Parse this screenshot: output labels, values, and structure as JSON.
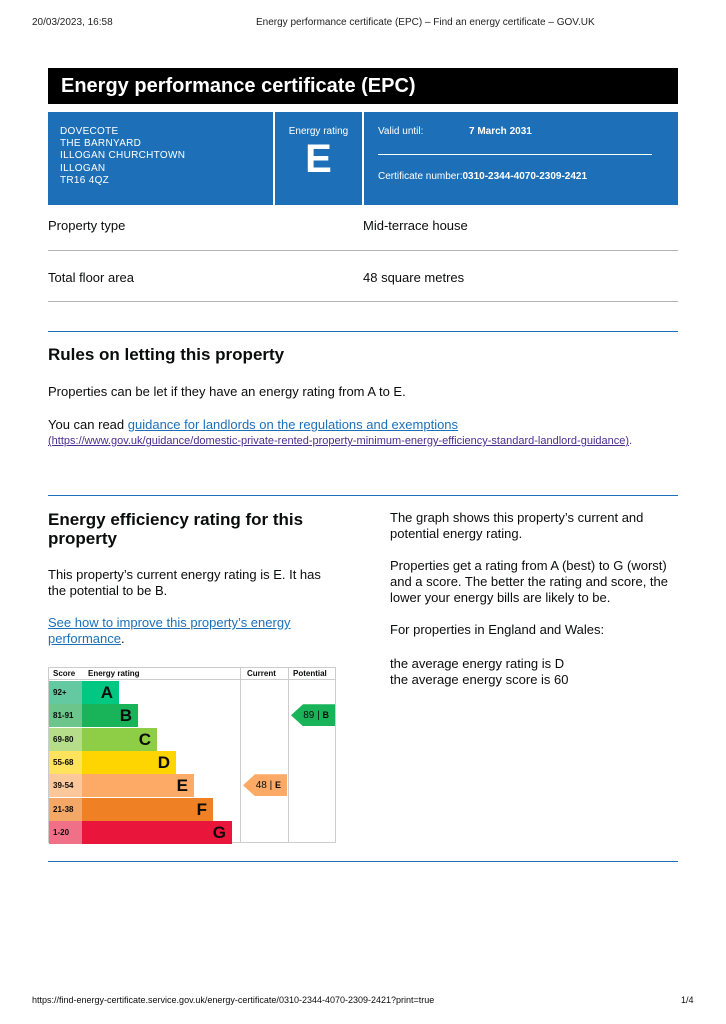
{
  "print_header": {
    "datetime": "20/03/2023, 16:58",
    "page_title": "Energy performance certificate (EPC) – Find an energy certificate – GOV.UK"
  },
  "title": "Energy performance certificate (EPC)",
  "address": [
    "DOVECOTE",
    "THE BARNYARD",
    "ILLOGAN CHURCHTOWN",
    "ILLOGAN",
    "TR16 4QZ"
  ],
  "energy_rating": {
    "label": "Energy rating",
    "value": "E"
  },
  "valid_until": {
    "label": "Valid until:",
    "value": "7 March 2031"
  },
  "certificate_number": {
    "label": "Certificate number:",
    "value": "0310-2344-4070-2309-2421"
  },
  "details": [
    {
      "label": "Property type",
      "value": "Mid-terrace house"
    },
    {
      "label": "Total floor area",
      "value": "48 square metres"
    }
  ],
  "rules": {
    "heading": "Rules on letting this property",
    "p1": "Properties can be let if they have an energy rating from A to E.",
    "p2_prefix": "You can read ",
    "link": "guidance for landlords on the regulations and exemptions",
    "url": "(https://www.gov.uk/guidance/domestic-private-rented-property-minimum-energy-efficiency-standard-landlord-guidance)",
    "suffix": "."
  },
  "efficiency": {
    "heading": "Energy efficiency rating for this property",
    "p1": "This property’s current energy rating is E. It has the potential to be B.",
    "link": "See how to improve this property’s energy performance",
    "suffix": ".",
    "right": [
      "The graph shows this property’s current and potential energy rating.",
      "Properties get a rating from A (best) to G (worst) and a score. The better the rating and score, the lower your energy bills are likely to be.",
      "For properties in England and Wales:"
    ],
    "avg_rating": "the average energy rating is D",
    "avg_score": "the average energy score is 60"
  },
  "rating_chart": {
    "headers": {
      "score": "Score",
      "rating": "Energy rating",
      "current": "Current",
      "potential": "Potential"
    },
    "bands": [
      {
        "score": "92+",
        "letter": "A",
        "color": "#00c781",
        "light": "#64c8a0"
      },
      {
        "score": "81-91",
        "letter": "B",
        "color": "#19b459",
        "light": "#6cc58a"
      },
      {
        "score": "69-80",
        "letter": "C",
        "color": "#8dce46",
        "light": "#b5dd8a"
      },
      {
        "score": "55-68",
        "letter": "D",
        "color": "#ffd500",
        "light": "#ffe35c"
      },
      {
        "score": "39-54",
        "letter": "E",
        "color": "#fcaa65",
        "light": "#fdc79c"
      },
      {
        "score": "21-38",
        "letter": "F",
        "color": "#ef8023",
        "light": "#f3a868"
      },
      {
        "score": "1-20",
        "letter": "G",
        "color": "#e9153b",
        "light": "#f07088"
      }
    ],
    "current": {
      "score": "48",
      "letter": "E",
      "band_index": 4
    },
    "potential": {
      "score": "89",
      "letter": "B",
      "band_index": 1
    }
  },
  "print_footer": {
    "url": "https://find-energy-certificate.service.gov.uk/energy-certificate/0310-2344-4070-2309-2421?print=true",
    "page": "1/4"
  }
}
